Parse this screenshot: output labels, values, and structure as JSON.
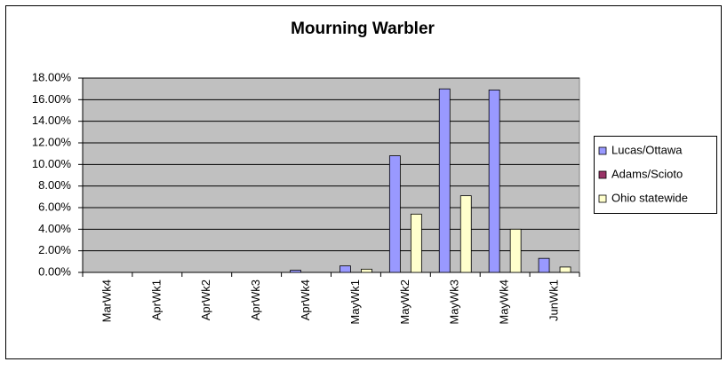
{
  "chart_data": {
    "type": "bar",
    "title": "Mourning Warbler",
    "categories": [
      "MarWk4",
      "AprWk1",
      "AprWk2",
      "AprWk3",
      "AprWk4",
      "MayWk1",
      "MayWk2",
      "MayWk3",
      "MayWk4",
      "JunWk1"
    ],
    "series": [
      {
        "name": "Lucas/Ottawa",
        "color": "#9999ff",
        "values": [
          0,
          0,
          0,
          0,
          0.2,
          0.6,
          10.8,
          17.0,
          16.9,
          1.3
        ]
      },
      {
        "name": "Adams/Scioto",
        "color": "#993366",
        "values": [
          0,
          0,
          0,
          0,
          0,
          0,
          0,
          0,
          0,
          0
        ]
      },
      {
        "name": "Ohio statewide",
        "color": "#ffffcc",
        "values": [
          0,
          0,
          0,
          0,
          0,
          0.3,
          5.4,
          7.1,
          4.0,
          0.5
        ]
      }
    ],
    "ylim": [
      0,
      18
    ],
    "yticks": [
      {
        "value": 0,
        "label": "0.00%"
      },
      {
        "value": 2,
        "label": "2.00%"
      },
      {
        "value": 4,
        "label": "4.00%"
      },
      {
        "value": 6,
        "label": "6.00%"
      },
      {
        "value": 8,
        "label": "8.00%"
      },
      {
        "value": 10,
        "label": "10.00%"
      },
      {
        "value": 12,
        "label": "12.00%"
      },
      {
        "value": 14,
        "label": "14.00%"
      },
      {
        "value": 16,
        "label": "16.00%"
      },
      {
        "value": 18,
        "label": "18.00%"
      }
    ],
    "grid": true,
    "legend": "right"
  }
}
